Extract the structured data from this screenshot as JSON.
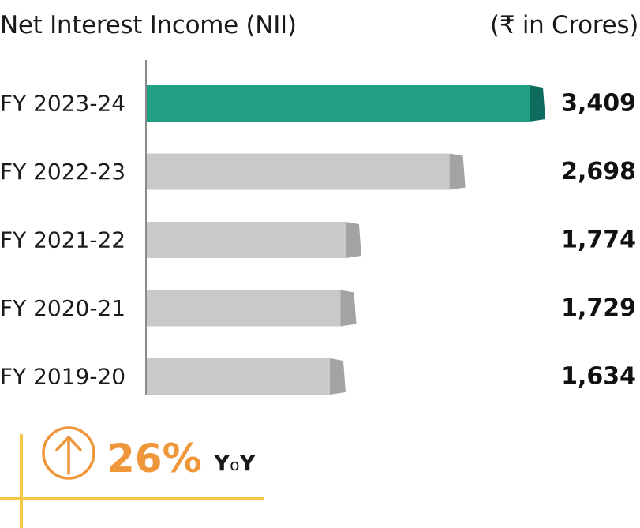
{
  "title": "Net Interest Income (NII)",
  "unit": "(₹ in Crores)",
  "chart_data": {
    "type": "bar",
    "orientation": "horizontal",
    "title": "Net Interest Income (NII)",
    "unit": "(₹ in Crores)",
    "categories": [
      "FY 2023-24",
      "FY 2022-23",
      "FY 2021-22",
      "FY 2020-21",
      "FY 2019-20"
    ],
    "values": [
      3409,
      2698,
      1774,
      1729,
      1634
    ],
    "value_labels": [
      "3,409",
      "2,698",
      "1,774",
      "1,729",
      "1,634"
    ],
    "highlight_index": 0,
    "colors": {
      "highlight": "#22a083",
      "highlight_end": "#0f6b5e",
      "default": "#c9c9c9",
      "default_end": "#a3a3a3",
      "axis": "#8a8a8a"
    },
    "grid": false,
    "legend": "none"
  },
  "yoy": {
    "value": "26%",
    "label_y": "Y",
    "label_o": "o",
    "label_y2": "Y",
    "direction": "up",
    "color": "#f0963a",
    "accent_line_color": "#f5c842"
  }
}
